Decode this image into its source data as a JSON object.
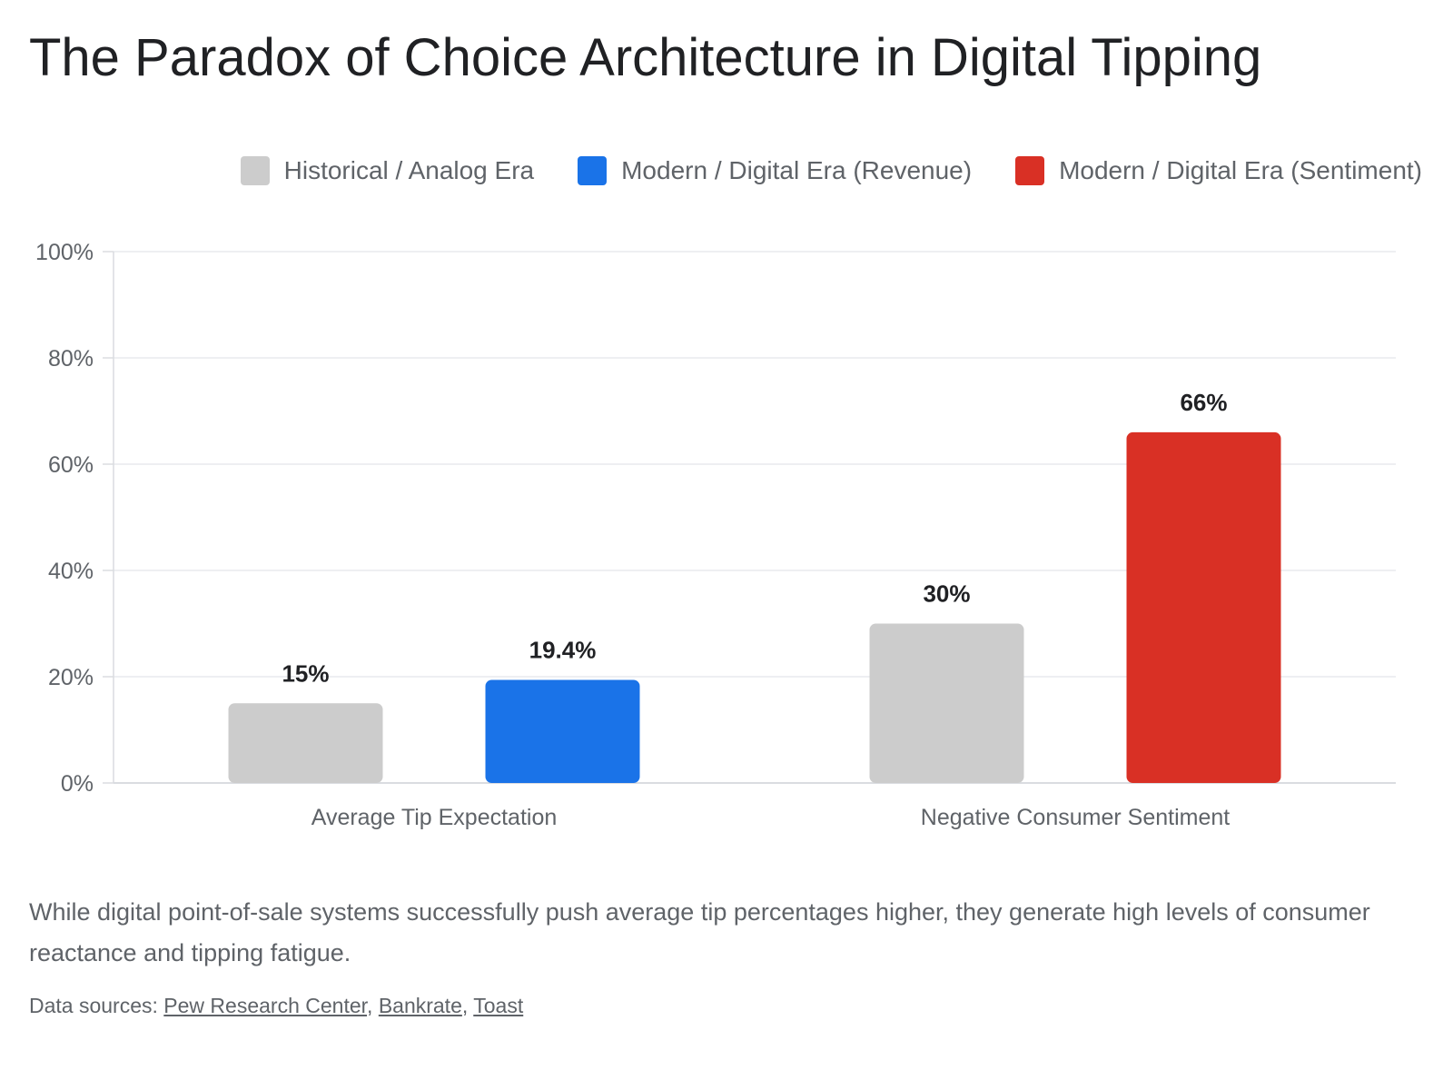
{
  "title": "The Paradox of Choice Architecture in Digital Tipping",
  "legend": [
    {
      "label": "Historical / Analog Era",
      "color": "#cccccc"
    },
    {
      "label": "Modern / Digital Era (Revenue)",
      "color": "#1a73e8"
    },
    {
      "label": "Modern / Digital Era (Sentiment)",
      "color": "#d93025"
    }
  ],
  "chart_data": {
    "type": "bar",
    "categories": [
      "Average Tip Expectation",
      "Negative Consumer Sentiment"
    ],
    "bars": [
      {
        "category": "Average Tip Expectation",
        "series": "Historical / Analog Era",
        "value": 15,
        "label": "15%",
        "color": "#cccccc"
      },
      {
        "category": "Average Tip Expectation",
        "series": "Modern / Digital Era (Revenue)",
        "value": 19.4,
        "label": "19.4%",
        "color": "#1a73e8"
      },
      {
        "category": "Negative Consumer Sentiment",
        "series": "Historical / Analog Era",
        "value": 30,
        "label": "30%",
        "color": "#cccccc"
      },
      {
        "category": "Negative Consumer Sentiment",
        "series": "Modern / Digital Era (Sentiment)",
        "value": 66,
        "label": "66%",
        "color": "#d93025"
      }
    ],
    "ylim": [
      0,
      100
    ],
    "yticks": [
      0,
      20,
      40,
      60,
      80,
      100
    ],
    "ytick_labels": [
      "0%",
      "20%",
      "40%",
      "60%",
      "80%",
      "100%"
    ],
    "grid": true,
    "legend_position": "top-right"
  },
  "caption": "While digital point-of-sale systems successfully push average tip percentages higher, they generate high levels of consumer reactance and tipping fatigue.",
  "sources": {
    "prefix": "Data sources: ",
    "links": [
      "Pew Research Center",
      "Bankrate",
      "Toast"
    ],
    "separator": ", "
  }
}
